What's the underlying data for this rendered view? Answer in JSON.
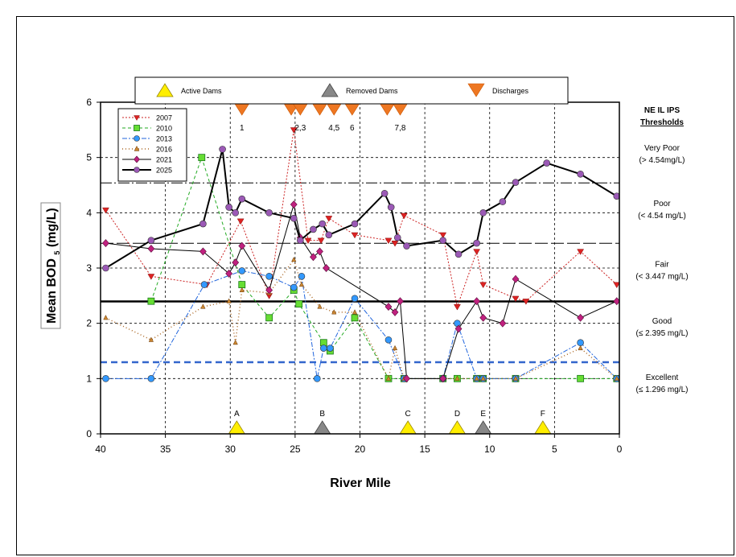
{
  "chart_data": {
    "type": "line",
    "xlabel": "River Mile",
    "ylabel": "Mean BOD",
    "ylabel_sub": "5",
    "ylabel_unit": " (mg/L)",
    "xlim": [
      40,
      0
    ],
    "ylim": [
      0,
      6
    ],
    "xticks": [
      40,
      35,
      30,
      25,
      20,
      15,
      10,
      5,
      0
    ],
    "yticks": [
      0,
      1,
      2,
      3,
      4,
      5,
      6
    ],
    "grid": true,
    "thresholds": [
      {
        "value": 4.54,
        "style": "dash-dot",
        "color": "#000000"
      },
      {
        "value": 3.447,
        "style": "long-dash",
        "color": "#000000"
      },
      {
        "value": 2.395,
        "style": "solid",
        "color": "#000000"
      },
      {
        "value": 1.296,
        "style": "dashed",
        "color": "#3366cc"
      }
    ],
    "threshold_header": [
      "NE IL IPS",
      "Thresholds"
    ],
    "threshold_labels": [
      {
        "line1": "Very Poor",
        "line2": "(> 4.54mg/L)",
        "y": 5.05
      },
      {
        "line1": "Poor",
        "line2": "(< 4.54 mg/L)",
        "y": 4.05
      },
      {
        "line1": "Fair",
        "line2": "(< 3.447 mg/L)",
        "y": 2.95
      },
      {
        "line1": "Good",
        "line2": "(≤ 2.395 mg/L)",
        "y": 1.92
      },
      {
        "line1": "Excellent",
        "line2": "(≤ 1.296 mg/L)",
        "y": 0.9
      }
    ],
    "top_legend": [
      {
        "label": "Active Dams",
        "symbol": "active-dam"
      },
      {
        "label": "Removed Dams",
        "symbol": "removed-dam"
      },
      {
        "label": "Discharges",
        "symbol": "discharge"
      }
    ],
    "discharges": [
      {
        "x": 29.1,
        "label": "1"
      },
      {
        "x": 25.3,
        "label": ""
      },
      {
        "x": 24.6,
        "label": "2,3"
      },
      {
        "x": 23.1,
        "label": ""
      },
      {
        "x": 22.0,
        "label": "4,5"
      },
      {
        "x": 20.6,
        "label": "6"
      },
      {
        "x": 17.9,
        "label": ""
      },
      {
        "x": 16.9,
        "label": "7,8"
      }
    ],
    "dams": [
      {
        "x": 29.5,
        "label": "A",
        "type": "active"
      },
      {
        "x": 22.9,
        "label": "B",
        "type": "removed"
      },
      {
        "x": 16.3,
        "label": "C",
        "type": "active"
      },
      {
        "x": 12.5,
        "label": "D",
        "type": "active"
      },
      {
        "x": 10.5,
        "label": "E",
        "type": "removed"
      },
      {
        "x": 5.9,
        "label": "F",
        "type": "active"
      }
    ],
    "series": [
      {
        "name": "2007",
        "color": "#cc2222",
        "dash": "2,2",
        "width": 1,
        "marker": "tri-down",
        "x": [
          39.6,
          36.1,
          31.8,
          29.2,
          27.0,
          25.1,
          24.0,
          23.0,
          22.4,
          20.4,
          17.8,
          17.3,
          16.6,
          13.6,
          12.5,
          11.0,
          10.5,
          8.0,
          7.2,
          3.0,
          0.2
        ],
        "y": [
          4.05,
          2.85,
          2.7,
          3.85,
          2.5,
          5.5,
          3.5,
          3.5,
          3.9,
          3.6,
          3.5,
          3.45,
          3.95,
          3.6,
          2.3,
          3.3,
          2.7,
          2.45,
          2.4,
          3.3,
          2.7
        ]
      },
      {
        "name": "2010",
        "color": "#22aa22",
        "dash": "4,3",
        "width": 1,
        "marker": "square",
        "x": [
          36.1,
          32.2,
          29.1,
          27.0,
          25.1,
          24.7,
          22.8,
          22.3,
          20.4,
          17.8,
          16.6,
          13.6,
          12.5,
          11.0,
          10.5,
          8.0,
          3.0,
          0.2
        ],
        "y": [
          2.4,
          5.0,
          2.7,
          2.1,
          2.6,
          2.35,
          1.65,
          1.5,
          2.1,
          1.0,
          1.0,
          1.0,
          1.0,
          1.0,
          1.0,
          1.0,
          1.0,
          1.0
        ],
        "xfull": []
      },
      {
        "name": "2013",
        "color": "#2266dd",
        "dash": "6,2,2,2",
        "width": 1,
        "marker": "circle",
        "x": [
          39.6,
          36.1,
          32.0,
          29.1,
          27.0,
          25.1,
          24.5,
          23.3,
          22.8,
          22.3,
          20.4,
          17.8,
          16.6,
          13.6,
          12.5,
          11.0,
          10.5,
          8.0,
          3.0,
          0.2
        ],
        "y": [
          1.0,
          1.0,
          2.7,
          2.95,
          2.85,
          2.65,
          2.85,
          1.0,
          1.55,
          1.55,
          2.45,
          1.7,
          1.0,
          1.0,
          2.0,
          1.0,
          1.0,
          1.0,
          1.65,
          1.0
        ]
      },
      {
        "name": "2016",
        "color": "#aa6622",
        "dash": "1,3",
        "width": 1.5,
        "marker": "tri-up",
        "x": [
          39.6,
          36.1,
          32.1,
          30.1,
          29.6,
          29.1,
          27.0,
          25.1,
          24.5,
          23.1,
          22.0,
          20.4,
          17.8,
          17.3,
          16.6,
          13.6,
          12.5,
          11.0,
          10.5,
          8.0,
          3.0,
          0.2
        ],
        "y": [
          2.1,
          1.7,
          2.3,
          2.4,
          1.65,
          2.6,
          2.55,
          3.15,
          2.7,
          2.3,
          2.2,
          2.2,
          1.0,
          1.55,
          1.0,
          1.0,
          1.0,
          1.0,
          1.0,
          1.0,
          1.55,
          1.0
        ]
      },
      {
        "name": "2021",
        "color": "#000000",
        "dash": "",
        "width": 1,
        "marker": "diamond",
        "markerColor": "#b8237e",
        "x": [
          39.6,
          36.1,
          32.1,
          30.1,
          29.6,
          29.1,
          27.0,
          25.1,
          24.6,
          23.6,
          23.1,
          22.6,
          17.8,
          17.3,
          16.9,
          16.4,
          13.6,
          12.4,
          11.0,
          10.5,
          9.0,
          8.0,
          3.0,
          0.2
        ],
        "y": [
          3.45,
          3.35,
          3.3,
          2.9,
          3.1,
          3.4,
          2.6,
          4.15,
          3.55,
          3.2,
          3.3,
          3.0,
          2.3,
          2.2,
          2.4,
          1.0,
          1.0,
          1.9,
          2.4,
          2.1,
          2.0,
          2.8,
          2.1,
          2.4
        ]
      },
      {
        "name": "2025",
        "color": "#000000",
        "dash": "",
        "width": 2,
        "marker": "circle",
        "markerColor": "#8e44ad",
        "x": [
          39.6,
          36.1,
          32.1,
          30.6,
          30.1,
          29.6,
          29.1,
          27.0,
          25.1,
          24.6,
          23.6,
          22.9,
          22.4,
          20.4,
          18.1,
          17.6,
          17.1,
          16.4,
          13.6,
          12.4,
          11.0,
          10.5,
          9.0,
          8.0,
          5.6,
          3.0,
          0.2
        ],
        "y": [
          3.0,
          3.5,
          3.8,
          5.15,
          4.1,
          4.0,
          4.25,
          4.0,
          3.9,
          3.5,
          3.7,
          3.8,
          3.6,
          3.8,
          4.35,
          4.1,
          3.55,
          3.4,
          3.5,
          3.25,
          3.45,
          4.0,
          4.2,
          4.55,
          4.9,
          4.7,
          4.3
        ]
      }
    ]
  }
}
